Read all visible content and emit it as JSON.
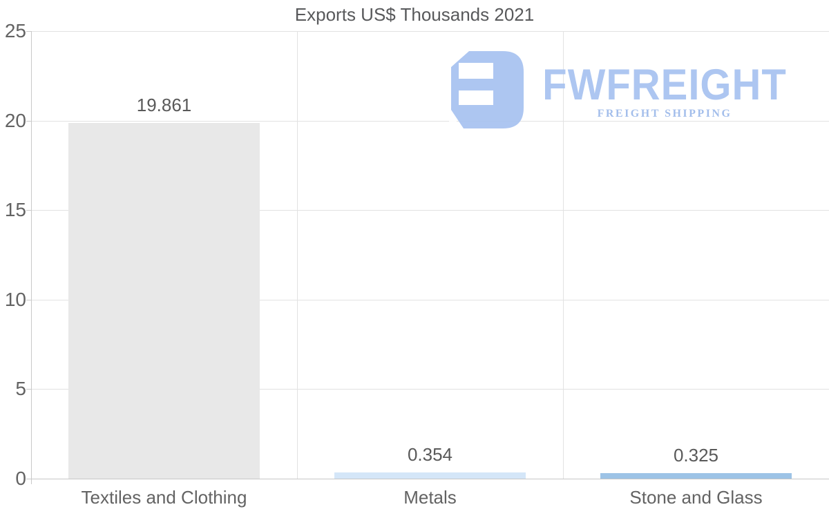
{
  "title": "Exports US$ Thousands 2021",
  "watermark": {
    "brand": "FWFREIGHT",
    "tagline": "FREIGHT SHIPPING",
    "icon": "fwfreight-logo-icon"
  },
  "colors": {
    "logo_blue": "#a7c2f0",
    "tagline_blue": "#9cb9ea",
    "grid": "#e2e2e2",
    "axis": "#c9c9c9",
    "baseline": "#c6c6c6",
    "title_text": "#58595b",
    "label_text": "#636363",
    "value_text": "#595959"
  },
  "chart_data": {
    "type": "bar",
    "title": "Exports US$ Thousands 2021",
    "categories": [
      "Textiles and Clothing",
      "Metals",
      "Stone and Glass"
    ],
    "values": [
      19.861,
      0.354,
      0.325
    ],
    "value_labels": [
      "19.861",
      "0.354",
      "0.325"
    ],
    "bar_colors": [
      "#e8e8e8",
      "#d4e6f8",
      "#9dc3e6"
    ],
    "xlabel": "",
    "ylabel": "",
    "ylim": [
      0,
      25
    ],
    "yticks": [
      0,
      5,
      10,
      15,
      20,
      25
    ],
    "grid": true,
    "legend_position": "none"
  }
}
